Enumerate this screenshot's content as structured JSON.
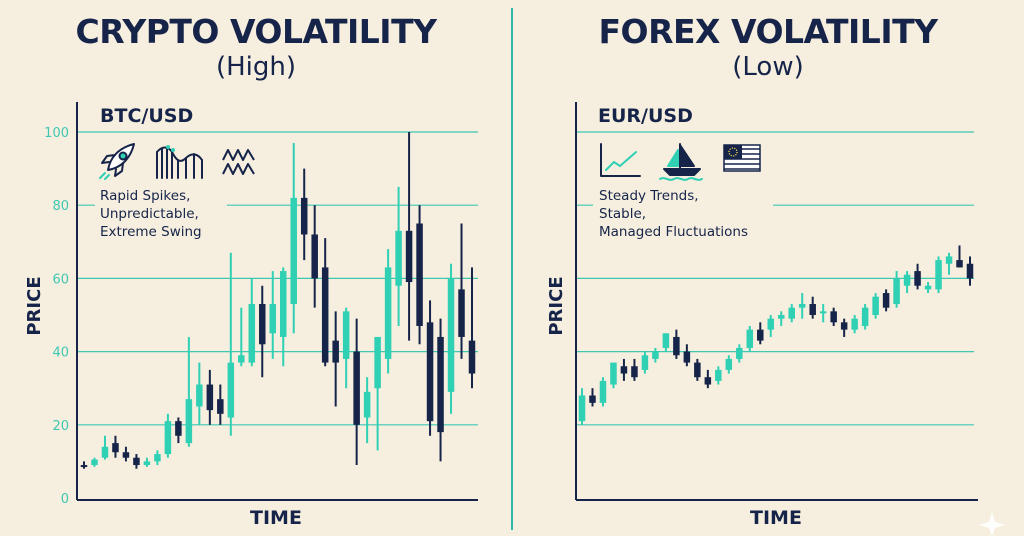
{
  "colors": {
    "background": "#f6efdf",
    "navy": "#16244a",
    "teal": "#2fd0b4",
    "gridline": "#3fc7b2",
    "divider": "#2fb8a6"
  },
  "left": {
    "title": "CRYPTO VOLATILITY",
    "subtitle": "(High)",
    "icons": [
      "rocket-icon",
      "roller-coaster-icon",
      "zigzag-icon"
    ],
    "description": [
      "Rapid Spikes,",
      "Unpredictable,",
      "Extreme Swing"
    ]
  },
  "right": {
    "title": "FOREX VOLATILITY",
    "subtitle": "(Low)",
    "icons": [
      "trend-line-icon",
      "sailboat-icon",
      "eu-us-flag-icon"
    ],
    "description": [
      "Steady Trends,",
      "Stable,",
      "Managed Fluctuations"
    ]
  },
  "chart_data": [
    {
      "type": "candlestick",
      "pair": "BTC/USD",
      "xlabel": "TIME",
      "ylabel": "PRICE",
      "ylim": [
        0,
        100
      ],
      "yticks": [
        0,
        20,
        40,
        60,
        80,
        100
      ],
      "grid": true,
      "up_color": "teal",
      "down_color": "navy",
      "candles": [
        {
          "o": 9,
          "h": 10,
          "l": 8,
          "c": 8.5
        },
        {
          "o": 9,
          "h": 11,
          "l": 8.5,
          "c": 10.5
        },
        {
          "o": 11,
          "h": 17,
          "l": 10.5,
          "c": 14
        },
        {
          "o": 15,
          "h": 17,
          "l": 11,
          "c": 12.5
        },
        {
          "o": 12.5,
          "h": 14,
          "l": 10,
          "c": 11
        },
        {
          "o": 11,
          "h": 12,
          "l": 8,
          "c": 9
        },
        {
          "o": 9,
          "h": 11,
          "l": 8.5,
          "c": 10
        },
        {
          "o": 10,
          "h": 13,
          "l": 9,
          "c": 12
        },
        {
          "o": 12,
          "h": 23,
          "l": 11,
          "c": 21
        },
        {
          "o": 21,
          "h": 22,
          "l": 15,
          "c": 17
        },
        {
          "o": 15,
          "h": 44,
          "l": 14,
          "c": 27
        },
        {
          "o": 25,
          "h": 37,
          "l": 20,
          "c": 31
        },
        {
          "o": 31,
          "h": 35,
          "l": 20,
          "c": 24
        },
        {
          "o": 27,
          "h": 31,
          "l": 20,
          "c": 23
        },
        {
          "o": 22,
          "h": 67,
          "l": 17,
          "c": 37
        },
        {
          "o": 37,
          "h": 52,
          "l": 36,
          "c": 39
        },
        {
          "o": 37,
          "h": 60,
          "l": 36,
          "c": 53
        },
        {
          "o": 53,
          "h": 58,
          "l": 33,
          "c": 42
        },
        {
          "o": 45,
          "h": 62,
          "l": 38,
          "c": 53
        },
        {
          "o": 44,
          "h": 63,
          "l": 36,
          "c": 62
        },
        {
          "o": 53,
          "h": 97,
          "l": 45,
          "c": 82
        },
        {
          "o": 82,
          "h": 90,
          "l": 65,
          "c": 72
        },
        {
          "o": 72,
          "h": 80,
          "l": 52,
          "c": 60
        },
        {
          "o": 63,
          "h": 71,
          "l": 36,
          "c": 37
        },
        {
          "o": 43,
          "h": 51,
          "l": 25,
          "c": 37
        },
        {
          "o": 38,
          "h": 52,
          "l": 30,
          "c": 51
        },
        {
          "o": 40,
          "h": 49,
          "l": 9,
          "c": 20
        },
        {
          "o": 22,
          "h": 33,
          "l": 15,
          "c": 29
        },
        {
          "o": 30,
          "h": 44,
          "l": 13,
          "c": 44
        },
        {
          "o": 38,
          "h": 68,
          "l": 34,
          "c": 63
        },
        {
          "o": 58,
          "h": 85,
          "l": 47,
          "c": 73
        },
        {
          "o": 73,
          "h": 100,
          "l": 43,
          "c": 59
        },
        {
          "o": 75,
          "h": 80,
          "l": 42,
          "c": 47
        },
        {
          "o": 48,
          "h": 54,
          "l": 17,
          "c": 21
        },
        {
          "o": 44,
          "h": 49,
          "l": 10,
          "c": 18
        },
        {
          "o": 29,
          "h": 64,
          "l": 23,
          "c": 60
        },
        {
          "o": 57,
          "h": 75,
          "l": 38,
          "c": 44
        },
        {
          "o": 43,
          "h": 63,
          "l": 30,
          "c": 34
        }
      ]
    },
    {
      "type": "candlestick",
      "pair": "EUR/USD",
      "xlabel": "TIME",
      "ylabel": "PRICE",
      "ylim": [
        0,
        100
      ],
      "grid": true,
      "up_color": "teal",
      "down_color": "navy",
      "candles": [
        {
          "o": 21,
          "h": 30,
          "l": 20,
          "c": 28
        },
        {
          "o": 28,
          "h": 30,
          "l": 25,
          "c": 26
        },
        {
          "o": 26,
          "h": 33,
          "l": 25,
          "c": 32
        },
        {
          "o": 31,
          "h": 37,
          "l": 30,
          "c": 37
        },
        {
          "o": 36,
          "h": 38,
          "l": 32,
          "c": 34
        },
        {
          "o": 36,
          "h": 38,
          "l": 32,
          "c": 33
        },
        {
          "o": 35,
          "h": 40,
          "l": 34,
          "c": 39
        },
        {
          "o": 38,
          "h": 41,
          "l": 37,
          "c": 40
        },
        {
          "o": 41,
          "h": 45,
          "l": 40,
          "c": 45
        },
        {
          "o": 44,
          "h": 46,
          "l": 38,
          "c": 39
        },
        {
          "o": 40,
          "h": 42,
          "l": 36,
          "c": 37
        },
        {
          "o": 37,
          "h": 38,
          "l": 32,
          "c": 33
        },
        {
          "o": 33,
          "h": 35,
          "l": 30,
          "c": 31
        },
        {
          "o": 32,
          "h": 36,
          "l": 31,
          "c": 35
        },
        {
          "o": 35,
          "h": 39,
          "l": 34,
          "c": 38
        },
        {
          "o": 38,
          "h": 42,
          "l": 37,
          "c": 41
        },
        {
          "o": 41,
          "h": 47,
          "l": 40,
          "c": 46
        },
        {
          "o": 46,
          "h": 48,
          "l": 42,
          "c": 43
        },
        {
          "o": 46,
          "h": 50,
          "l": 44,
          "c": 49
        },
        {
          "o": 49,
          "h": 51,
          "l": 47,
          "c": 50
        },
        {
          "o": 49,
          "h": 53,
          "l": 48,
          "c": 52
        },
        {
          "o": 52,
          "h": 56,
          "l": 49,
          "c": 53
        },
        {
          "o": 53,
          "h": 55,
          "l": 49,
          "c": 50
        },
        {
          "o": 51,
          "h": 53,
          "l": 48,
          "c": 51
        },
        {
          "o": 51,
          "h": 52,
          "l": 47,
          "c": 48
        },
        {
          "o": 48,
          "h": 49,
          "l": 44,
          "c": 46
        },
        {
          "o": 46,
          "h": 50,
          "l": 45,
          "c": 49
        },
        {
          "o": 47,
          "h": 53,
          "l": 46,
          "c": 52
        },
        {
          "o": 50,
          "h": 56,
          "l": 49,
          "c": 55
        },
        {
          "o": 56,
          "h": 57,
          "l": 51,
          "c": 52
        },
        {
          "o": 53,
          "h": 62,
          "l": 52,
          "c": 60
        },
        {
          "o": 58,
          "h": 62,
          "l": 56,
          "c": 61
        },
        {
          "o": 62,
          "h": 64,
          "l": 57,
          "c": 58
        },
        {
          "o": 57,
          "h": 59,
          "l": 56,
          "c": 58
        },
        {
          "o": 57,
          "h": 66,
          "l": 56,
          "c": 65
        },
        {
          "o": 64,
          "h": 67,
          "l": 61,
          "c": 66
        },
        {
          "o": 65,
          "h": 69,
          "l": 63,
          "c": 63
        },
        {
          "o": 64,
          "h": 66,
          "l": 58,
          "c": 60
        }
      ]
    }
  ]
}
